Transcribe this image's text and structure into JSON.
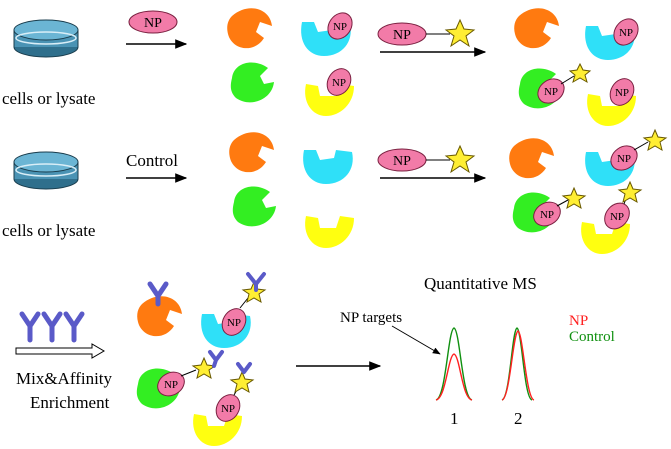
{
  "rows": {
    "row1": {
      "sample_label": "cells or lysate",
      "treatment_label": "NP",
      "probe_label": "NP"
    },
    "row2": {
      "sample_label": "cells or lysate",
      "treatment_label": "Control",
      "probe_label": "NP"
    }
  },
  "enrichment": {
    "line1": "Mix&Affinity",
    "line2": "Enrichment"
  },
  "ms": {
    "title": "Quantitative MS",
    "targets_label": "NP targets",
    "legend": [
      {
        "label": "NP",
        "color": "#ff2020"
      },
      {
        "label": "Control",
        "color": "#109010"
      }
    ],
    "peaks": [
      "1",
      "2"
    ]
  },
  "tag_label": "NP",
  "colors": {
    "orange": "#ff7a10",
    "cyan": "#2fe0f8",
    "green": "#33ee22",
    "yellow": "#ffff10",
    "np_pink": "#f27ba8",
    "star": "#ffee33",
    "antibody": "#5a5ac8",
    "dish": "#4a93b4"
  }
}
